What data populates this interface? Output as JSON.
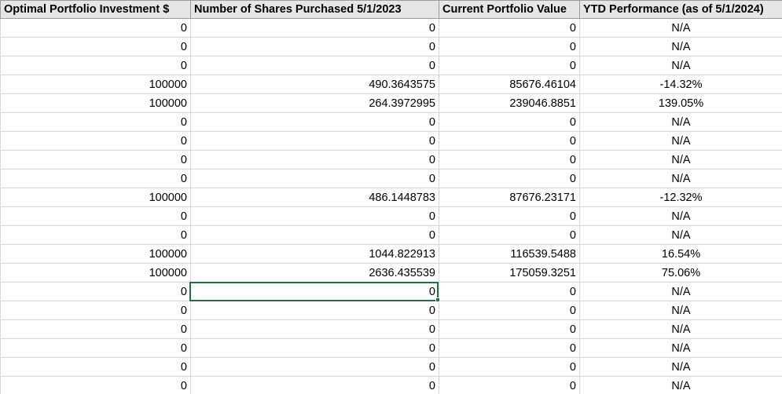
{
  "columns": [
    {
      "key": "investment",
      "label": "Optimal Portfolio Investment $"
    },
    {
      "key": "shares",
      "label": "Number of Shares Purchased 5/1/2023"
    },
    {
      "key": "value",
      "label": "Current Portfolio Value"
    },
    {
      "key": "ytd",
      "label": "YTD Performance (as of 5/1/2024)"
    }
  ],
  "rows": [
    {
      "investment": "0",
      "shares": "0",
      "value": "0",
      "ytd": "N/A"
    },
    {
      "investment": "0",
      "shares": "0",
      "value": "0",
      "ytd": "N/A"
    },
    {
      "investment": "0",
      "shares": "0",
      "value": "0",
      "ytd": "N/A"
    },
    {
      "investment": "100000",
      "shares": "490.3643575",
      "value": "85676.46104",
      "ytd": "-14.32%"
    },
    {
      "investment": "100000",
      "shares": "264.3972995",
      "value": "239046.8851",
      "ytd": "139.05%"
    },
    {
      "investment": "0",
      "shares": "0",
      "value": "0",
      "ytd": "N/A"
    },
    {
      "investment": "0",
      "shares": "0",
      "value": "0",
      "ytd": "N/A"
    },
    {
      "investment": "0",
      "shares": "0",
      "value": "0",
      "ytd": "N/A"
    },
    {
      "investment": "0",
      "shares": "0",
      "value": "0",
      "ytd": "N/A"
    },
    {
      "investment": "100000",
      "shares": "486.1448783",
      "value": "87676.23171",
      "ytd": "-12.32%"
    },
    {
      "investment": "0",
      "shares": "0",
      "value": "0",
      "ytd": "N/A"
    },
    {
      "investment": "0",
      "shares": "0",
      "value": "0",
      "ytd": "N/A"
    },
    {
      "investment": "100000",
      "shares": "1044.822913",
      "value": "116539.5488",
      "ytd": "16.54%"
    },
    {
      "investment": "100000",
      "shares": "2636.435539",
      "value": "175059.3251",
      "ytd": "75.06%"
    },
    {
      "investment": "0",
      "shares": "0",
      "value": "0",
      "ytd": "N/A"
    },
    {
      "investment": "0",
      "shares": "0",
      "value": "0",
      "ytd": "N/A"
    },
    {
      "investment": "0",
      "shares": "0",
      "value": "0",
      "ytd": "N/A"
    },
    {
      "investment": "0",
      "shares": "0",
      "value": "0",
      "ytd": "N/A"
    },
    {
      "investment": "0",
      "shares": "0",
      "value": "0",
      "ytd": "N/A"
    },
    {
      "investment": "0",
      "shares": "0",
      "value": "0",
      "ytd": "N/A"
    }
  ],
  "selection": {
    "row": 14,
    "column": "shares",
    "color": "#1e7145"
  }
}
